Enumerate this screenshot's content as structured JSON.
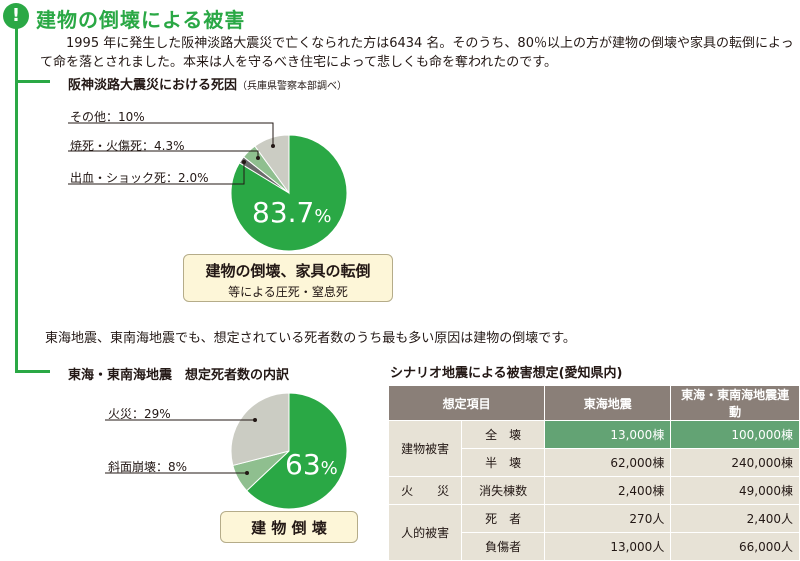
{
  "header": {
    "title": "建物の倒壊による被害",
    "alert_icon": "exclamation-icon"
  },
  "intro": "1995 年に発生した阪神淡路大震災で亡くなられた方は6434 名。そのうち、80％以上の方が建物の倒壊や家具の転倒によって命を落とされました。本来は人を守るべき住宅によって悲しくも命を奪われたのです。",
  "section1": {
    "heading": "阪神淡路大震災における死因",
    "source": "（兵庫県警察本部調べ）",
    "labels": [
      "その他：10%",
      "焼死・火傷死：4.3%",
      "出血・ショック死：2.0%"
    ],
    "big_value": "83.7",
    "big_unit": "%",
    "callout_title": "建物の倒壊、家具の転倒",
    "callout_sub": "等による圧死・窒息死"
  },
  "middle_text": "東海地震、東南海地震でも、想定されている死者数のうち最も多い原因は建物の倒壊です。",
  "section2": {
    "heading": "東海・東南海地震　想定死者数の内訳",
    "labels": [
      "火災：29%",
      "斜面崩壊：8%"
    ],
    "big_value": "63",
    "big_unit": "%",
    "callout_title": "建 物 倒 壊"
  },
  "table": {
    "title": "シナリオ地震による被害想定(愛知県内)",
    "headers": [
      "想定項目",
      "東海地震",
      "東海・東南海地震連動"
    ],
    "rows": [
      {
        "cat": "建物被害",
        "item": "全　壊",
        "v1": "13,000棟",
        "v2": "100,000棟"
      },
      {
        "cat": "",
        "item": "半　壊",
        "v1": "62,000棟",
        "v2": "240,000棟"
      },
      {
        "cat": "火　　災",
        "item": "消失棟数",
        "v1": "2,400棟",
        "v2": "49,000棟"
      },
      {
        "cat": "人的被害",
        "item": "死　者",
        "v1": "270人",
        "v2": "2,400人"
      },
      {
        "cat": "",
        "item": "負傷者",
        "v1": "13,000人",
        "v2": "66,000人"
      }
    ]
  },
  "chart_data": [
    {
      "type": "pie",
      "title": "阪神淡路大震災における死因",
      "slices": [
        {
          "label": "建物の倒壊、家具の転倒等による圧死・窒息死",
          "value": 83.7,
          "color": "#2aa845"
        },
        {
          "label": "出血・ショック死",
          "value": 2.0,
          "color": "#6a6a6a"
        },
        {
          "label": "焼死・火傷死",
          "value": 4.3,
          "color": "#8fbf8f"
        },
        {
          "label": "その他",
          "value": 10,
          "color": "#cbccc3"
        }
      ]
    },
    {
      "type": "pie",
      "title": "東海・東南海地震　想定死者数の内訳",
      "slices": [
        {
          "label": "建物倒壊",
          "value": 63,
          "color": "#2aa845"
        },
        {
          "label": "斜面崩壊",
          "value": 8,
          "color": "#8fbf8f"
        },
        {
          "label": "火災",
          "value": 29,
          "color": "#cbccc3"
        }
      ]
    }
  ]
}
